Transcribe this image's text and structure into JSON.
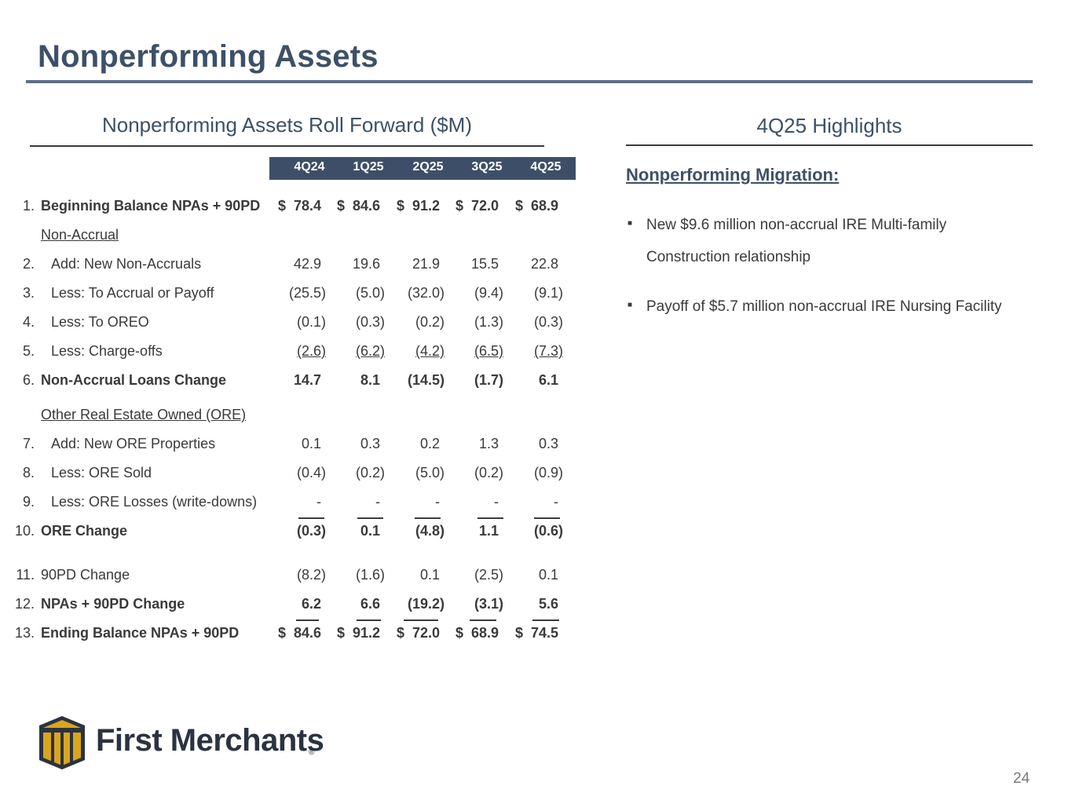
{
  "page": {
    "title": "Nonperforming Assets",
    "page_number": "24"
  },
  "left_section": {
    "title": "Nonperforming Assets Roll Forward ($M)",
    "columns": [
      "4Q24",
      "1Q25",
      "2Q25",
      "3Q25",
      "4Q25"
    ],
    "rows": [
      {
        "num": "1.",
        "label": "Beginning Balance NPAs + 90PD",
        "values": [
          "78.4",
          "84.6",
          "91.2",
          "72.0",
          "68.9"
        ]
      },
      {
        "num": "",
        "label": "Non-Accrual",
        "values": []
      },
      {
        "num": "2.",
        "label": "Add: New Non-Accruals",
        "values": [
          "42.9",
          "19.6",
          "21.9",
          "15.5",
          "22.8"
        ]
      },
      {
        "num": "3.",
        "label": "Less:  To Accrual or Payoff",
        "values": [
          "(25.5)",
          "(5.0)",
          "(32.0)",
          "(9.4)",
          "(9.1)"
        ]
      },
      {
        "num": "4.",
        "label": "Less:  To OREO",
        "values": [
          "(0.1)",
          "(0.3)",
          "(0.2)",
          "(1.3)",
          "(0.3)"
        ]
      },
      {
        "num": "5.",
        "label": "Less:  Charge-offs",
        "values": [
          "(2.6)",
          "(6.2)",
          "(4.2)",
          "(6.5)",
          "(7.3)"
        ]
      },
      {
        "num": "6.",
        "label": "Non-Accrual Loans Change",
        "values": [
          "14.7",
          "8.1",
          "(14.5)",
          "(1.7)",
          "6.1"
        ]
      },
      {
        "num": "",
        "label": "Other Real Estate Owned (ORE)",
        "values": []
      },
      {
        "num": "7.",
        "label": "Add:  New ORE Properties",
        "values": [
          "0.1",
          "0.3",
          "0.2",
          "1.3",
          "0.3"
        ]
      },
      {
        "num": "8.",
        "label": "Less: ORE Sold",
        "values": [
          "(0.4)",
          "(0.2)",
          "(5.0)",
          "(0.2)",
          "(0.9)"
        ]
      },
      {
        "num": "9.",
        "label": "Less: ORE Losses (write-downs)",
        "values": [
          "-",
          "-",
          "-",
          "-",
          "-"
        ]
      },
      {
        "num": "10.",
        "label": "ORE Change",
        "values": [
          "(0.3)",
          "0.1",
          "(4.8)",
          "1.1",
          "(0.6)"
        ]
      },
      {
        "num": "11.",
        "label": "90PD Change",
        "values": [
          "(8.2)",
          "(1.6)",
          "0.1",
          "(2.5)",
          "0.1"
        ]
      },
      {
        "num": "12.",
        "label": "NPAs + 90PD Change",
        "values": [
          "6.2",
          "6.6",
          "(19.2)",
          "(3.1)",
          "5.6"
        ]
      },
      {
        "num": "13.",
        "label": "Ending Balance NPAs + 90PD",
        "values": [
          "84.6",
          "91.2",
          "72.0",
          "68.9",
          "74.5"
        ]
      }
    ],
    "currency_symbol": "$"
  },
  "right_section": {
    "title": "4Q25 Highlights",
    "subtitle": "Nonperforming Migration:",
    "bullets": [
      "New $9.6 million non-accrual IRE Multi-family Construction relationship",
      "Payoff of $5.7 million non-accrual IRE Nursing Facility"
    ]
  },
  "logo": {
    "name": "First Merchants",
    "registered_mark": "®"
  },
  "colors": {
    "title": "#3d5068",
    "header_band": "#3d4f68",
    "text": "#3a3a3a",
    "logo_gold": "#d9a520",
    "logo_dark": "#2b3340"
  }
}
